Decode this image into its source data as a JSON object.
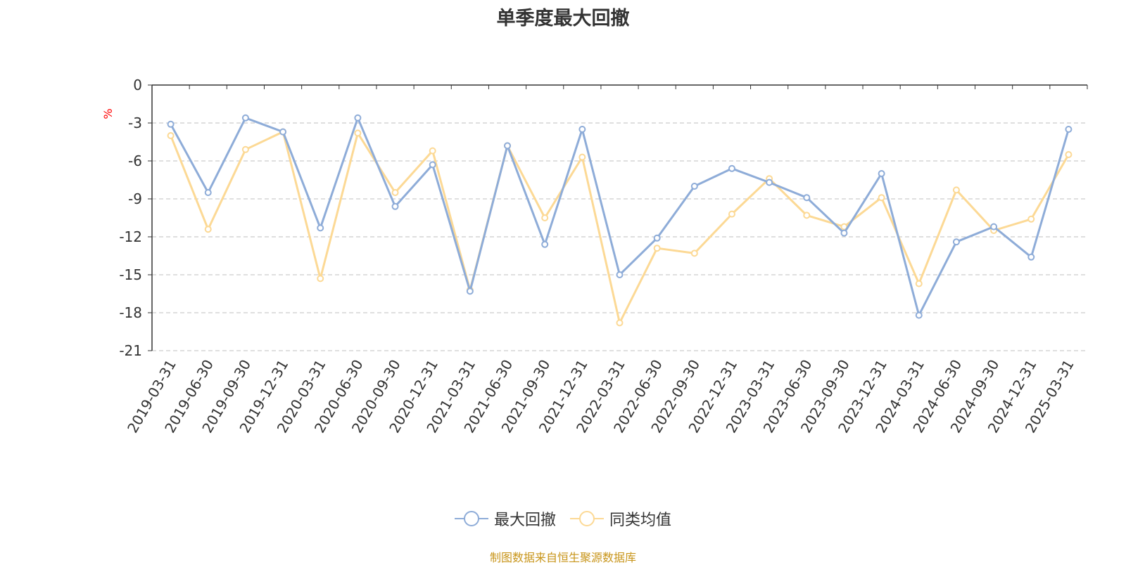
{
  "chart_data": {
    "type": "line",
    "title": "单季度最大回撤",
    "ylabel": "%",
    "ylim": [
      -21,
      0
    ],
    "yticks": [
      0,
      -3,
      -6,
      -9,
      -12,
      -15,
      -18,
      -21
    ],
    "grid": true,
    "legend_position": "bottom",
    "categories": [
      "2019-03-31",
      "2019-06-30",
      "2019-09-30",
      "2019-12-31",
      "2020-03-31",
      "2020-06-30",
      "2020-09-30",
      "2020-12-31",
      "2021-03-31",
      "2021-06-30",
      "2021-09-30",
      "2021-12-31",
      "2022-03-31",
      "2022-06-30",
      "2022-09-30",
      "2022-12-31",
      "2023-03-31",
      "2023-06-30",
      "2023-09-30",
      "2023-12-31",
      "2024-03-31",
      "2024-06-30",
      "2024-09-30",
      "2024-12-31",
      "2025-03-31"
    ],
    "series": [
      {
        "name": "最大回撤",
        "color": "#8eacd8",
        "values": [
          -3.1,
          -8.5,
          -2.6,
          -3.7,
          -11.3,
          -2.6,
          -9.6,
          -6.3,
          -16.3,
          -4.8,
          -12.6,
          -3.5,
          -15.0,
          -12.1,
          -8.0,
          -6.6,
          -7.7,
          -8.9,
          -11.7,
          -7.0,
          -18.2,
          -12.4,
          -11.2,
          -13.6,
          -3.5
        ]
      },
      {
        "name": "同类均值",
        "color": "#fcd995",
        "values": [
          -4.0,
          -11.4,
          -5.1,
          -3.7,
          -15.3,
          -3.8,
          -8.5,
          -5.2,
          -16.2,
          -4.8,
          -10.5,
          -5.7,
          -18.8,
          -12.9,
          -13.3,
          -10.2,
          -7.4,
          -10.3,
          -11.2,
          -8.9,
          -15.7,
          -8.3,
          -11.5,
          -10.6,
          -5.5
        ]
      }
    ]
  },
  "source_note": "制图数据来自恒生聚源数据库",
  "colors": {
    "axis": "#333333",
    "grid": "#cccccc",
    "ylabel": "#ff0000",
    "source_note": "#c8951a"
  }
}
